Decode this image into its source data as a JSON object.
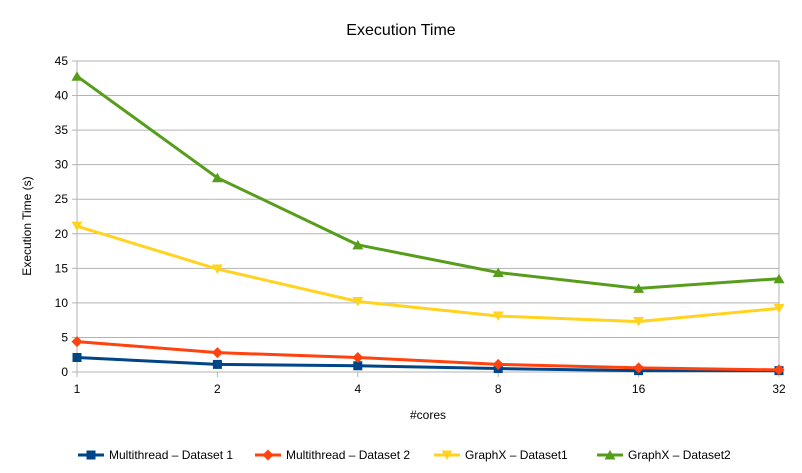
{
  "chart_data": {
    "type": "line",
    "title": "Execution Time",
    "xlabel": "#cores",
    "ylabel": "Execution Time (s)",
    "categories": [
      "1",
      "2",
      "4",
      "8",
      "16",
      "32"
    ],
    "ylim": [
      0,
      45
    ],
    "yticks": [
      0,
      5,
      10,
      15,
      20,
      25,
      30,
      35,
      40,
      45
    ],
    "grid": true,
    "legend_position": "bottom",
    "series": [
      {
        "name": "Multithread – Dataset 1",
        "color": "#004586",
        "marker": "square",
        "values": [
          2.1,
          1.1,
          0.9,
          0.5,
          0.2,
          0.2
        ]
      },
      {
        "name": "Multithread – Dataset 2",
        "color": "#ff420e",
        "marker": "diamond",
        "values": [
          4.4,
          2.8,
          2.1,
          1.1,
          0.6,
          0.3
        ]
      },
      {
        "name": "GraphX – Dataset1",
        "color": "#ffd320",
        "marker": "triangle-down",
        "values": [
          21.1,
          14.9,
          10.2,
          8.1,
          7.3,
          9.2
        ]
      },
      {
        "name": "GraphX – Dataset2",
        "color": "#579d1c",
        "marker": "triangle-up",
        "values": [
          42.8,
          28.1,
          18.4,
          14.4,
          12.1,
          13.5
        ]
      }
    ]
  }
}
